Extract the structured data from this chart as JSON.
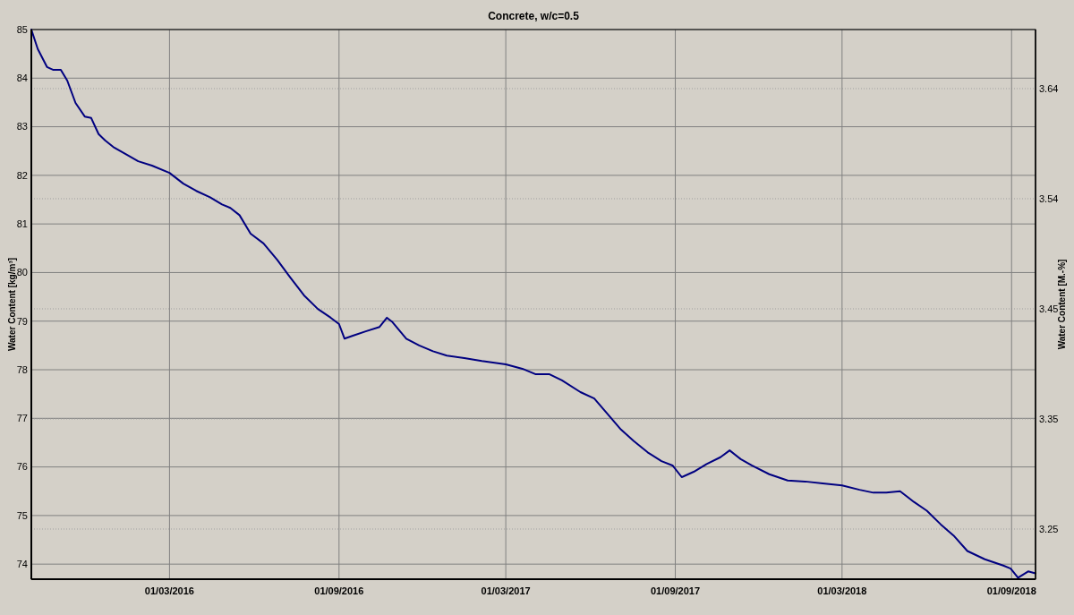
{
  "chart_data": {
    "type": "line",
    "title": "Concrete, w/c=0.5",
    "ylabel": "Water Content [kg/m³]",
    "y2label": "Water Content [M.-%]",
    "x": [
      "2015-10-03",
      "2015-10-10",
      "2015-10-20",
      "2015-10-27",
      "2015-11-04",
      "2015-11-11",
      "2015-11-20",
      "2015-11-30",
      "2015-12-07",
      "2015-12-15",
      "2015-12-22",
      "2016-01-01",
      "2016-01-13",
      "2016-01-27",
      "2016-02-11",
      "2016-03-01",
      "2016-03-16",
      "2016-03-30",
      "2016-04-14",
      "2016-04-27",
      "2016-05-06",
      "2016-05-16",
      "2016-05-28",
      "2016-06-11",
      "2016-06-26",
      "2016-07-10",
      "2016-07-25",
      "2016-08-09",
      "2016-08-23",
      "2016-09-01",
      "2016-09-07",
      "2016-09-16",
      "2016-09-30",
      "2016-10-15",
      "2016-10-23",
      "2016-10-29",
      "2016-11-13",
      "2016-11-27",
      "2016-12-12",
      "2016-12-27",
      "2017-01-15",
      "2017-02-03",
      "2017-03-01",
      "2017-03-19",
      "2017-04-02",
      "2017-04-17",
      "2017-05-01",
      "2017-05-21",
      "2017-06-05",
      "2017-06-19",
      "2017-07-04",
      "2017-07-18",
      "2017-08-02",
      "2017-08-17",
      "2017-08-29",
      "2017-09-08",
      "2017-09-21",
      "2017-10-05",
      "2017-10-20",
      "2017-10-30",
      "2017-11-11",
      "2017-11-23",
      "2017-12-12",
      "2018-01-01",
      "2018-01-20",
      "2018-02-08",
      "2018-03-01",
      "2018-03-20",
      "2018-04-04",
      "2018-04-18",
      "2018-05-03",
      "2018-05-18",
      "2018-06-01",
      "2018-06-16",
      "2018-06-30",
      "2018-07-15",
      "2018-08-03",
      "2018-08-23",
      "2018-08-31",
      "2018-09-08",
      "2018-09-19",
      "2018-09-27"
    ],
    "series": [
      {
        "color": "#000080",
        "values": [
          85.0,
          84.6,
          84.23,
          84.17,
          84.17,
          83.95,
          83.49,
          83.21,
          83.18,
          82.85,
          82.72,
          82.57,
          82.44,
          82.29,
          82.2,
          82.05,
          81.83,
          81.68,
          81.55,
          81.4,
          81.33,
          81.18,
          80.8,
          80.6,
          80.26,
          79.9,
          79.53,
          79.25,
          79.07,
          78.94,
          78.64,
          78.7,
          78.79,
          78.88,
          79.07,
          78.98,
          78.64,
          78.5,
          78.38,
          78.29,
          78.24,
          78.18,
          78.11,
          78.02,
          77.91,
          77.91,
          77.78,
          77.54,
          77.41,
          77.1,
          76.77,
          76.53,
          76.3,
          76.12,
          76.03,
          75.79,
          75.9,
          76.06,
          76.2,
          76.34,
          76.16,
          76.03,
          75.85,
          75.72,
          75.7,
          75.66,
          75.62,
          75.53,
          75.47,
          75.47,
          75.5,
          75.28,
          75.1,
          74.82,
          74.59,
          74.27,
          74.1,
          73.97,
          73.91,
          73.72,
          73.85,
          73.81
        ]
      }
    ],
    "xlim": [
      "2015-10-03",
      "2018-09-27"
    ],
    "xticks": [
      {
        "value": "2016-03-01",
        "label": "01/03/2016"
      },
      {
        "value": "2016-09-01",
        "label": "01/09/2016"
      },
      {
        "value": "2017-03-01",
        "label": "01/03/2017"
      },
      {
        "value": "2017-09-01",
        "label": "01/09/2017"
      },
      {
        "value": "2018-03-01",
        "label": "01/03/2018"
      },
      {
        "value": "2018-09-01",
        "label": "01/09/2018"
      }
    ],
    "ylim": [
      73.69,
      85
    ],
    "yticks": [
      74,
      75,
      76,
      77,
      78,
      79,
      80,
      81,
      82,
      83,
      84,
      85
    ],
    "y2lim": [
      3.2056,
      3.6923
    ],
    "y2ticks": [
      {
        "value": 3.25,
        "label": "3.25"
      },
      {
        "value": 3.3475,
        "label": "3.35"
      },
      {
        "value": 3.445,
        "label": "3.45"
      },
      {
        "value": 3.5425,
        "label": "3.54"
      },
      {
        "value": 3.64,
        "label": "3.64"
      }
    ],
    "grid": true,
    "marker": "none",
    "line_style": "solid"
  }
}
